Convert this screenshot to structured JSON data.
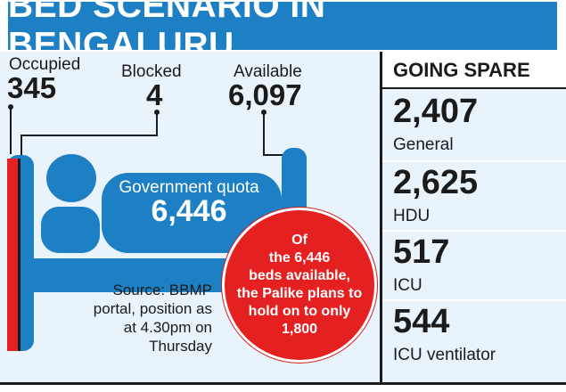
{
  "title": "BED SCENARIO IN BENGALURU",
  "stats": {
    "occupied": {
      "label": "Occupied",
      "value": "345"
    },
    "blocked": {
      "label": "Blocked",
      "value": "4"
    },
    "available": {
      "label": "Available",
      "value": "6,097"
    }
  },
  "quota": {
    "label": "Government quota",
    "value": "6,446"
  },
  "source_lines": [
    "Source: BBMP",
    "portal, position as",
    "at 4.30pm on",
    "Thursday"
  ],
  "callout_lines": [
    "Of",
    "the 6,446",
    "beds available,",
    "the Palike plans to",
    "hold on to only",
    "1,800"
  ],
  "going_spare": {
    "heading": "GOING SPARE",
    "items": [
      {
        "value": "2,407",
        "label": "General"
      },
      {
        "value": "2,625",
        "label": "HDU"
      },
      {
        "value": "517",
        "label": "ICU"
      },
      {
        "value": "544",
        "label": "ICU ventilator"
      }
    ]
  },
  "colors": {
    "title_bg": "#1d7fc4",
    "panel_bg": "#e9f3fb",
    "bed_blue": "#1d7fc4",
    "occupied_red": "#e42020",
    "callout_red": "#e42020",
    "text": "#1b1b1b"
  }
}
